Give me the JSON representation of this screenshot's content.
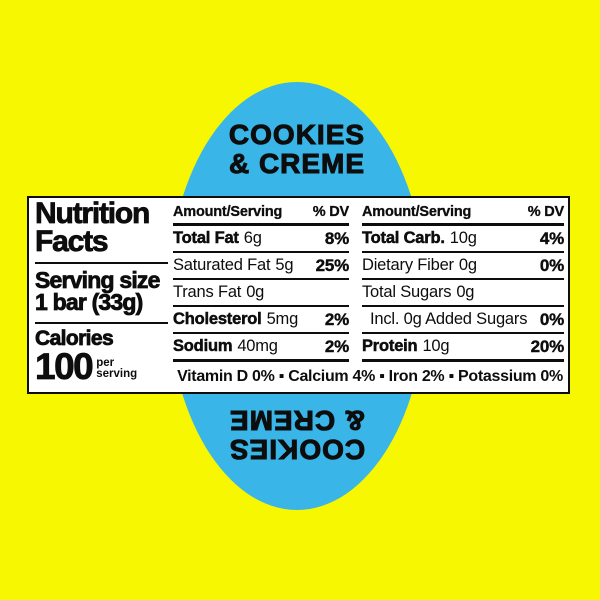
{
  "colors": {
    "background": "#F7F701",
    "circle": "#3AB5E8",
    "ink": "#0D0D0D",
    "label_bg": "#FFFFFF"
  },
  "flavor": {
    "line1": "COOKIES",
    "line2": "& CREME"
  },
  "label": {
    "title_line1": "Nutrition",
    "title_line2": "Facts",
    "serving": {
      "label": "Serving size",
      "value": "1 bar (33g)"
    },
    "calories": {
      "label": "Calories",
      "value": "100",
      "per_line1": "per",
      "per_line2": "serving"
    },
    "columns": [
      {
        "header_amount": "Amount/Serving",
        "header_dv": "% DV",
        "rows": [
          {
            "name": "Total Fat",
            "amount": "6g",
            "dv": "8%"
          },
          {
            "name": "Saturated Fat",
            "amount": "5g",
            "dv": "25%"
          },
          {
            "name": "Trans Fat",
            "amount": "0g",
            "dv": ""
          },
          {
            "name": "Cholesterol",
            "amount": "5mg",
            "dv": "2%"
          },
          {
            "name": "Sodium",
            "amount": "40mg",
            "dv": "2%"
          }
        ]
      },
      {
        "header_amount": "Amount/Serving",
        "header_dv": "% DV",
        "rows": [
          {
            "name": "Total Carb.",
            "amount": "10g",
            "dv": "4%"
          },
          {
            "name": "Dietary Fiber",
            "amount": "0g",
            "dv": "0%"
          },
          {
            "name": "Total Sugars",
            "amount": "0g",
            "dv": ""
          },
          {
            "name": "Incl. 0g Added Sugars",
            "amount": "",
            "dv": "0%"
          },
          {
            "name": "Protein",
            "amount": "10g",
            "dv": "20%"
          }
        ]
      }
    ],
    "vitamins": "Vitamin D 0% ▪ Calcium 4% ▪ Iron 2% ▪ Potassium 0%"
  }
}
